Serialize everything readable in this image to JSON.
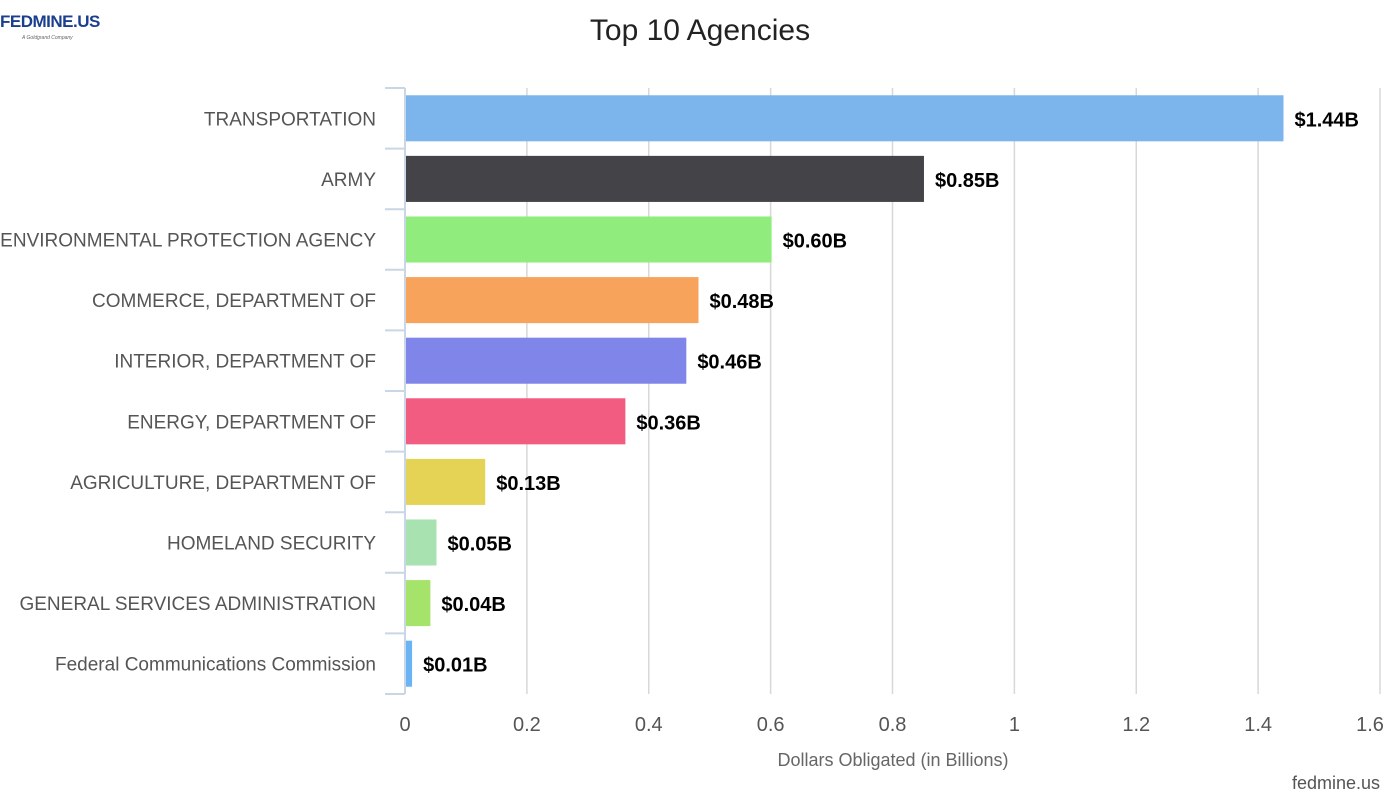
{
  "logo": {
    "brand": "FEDMINE.US",
    "tagline": "A Goldgrand Company"
  },
  "credit": "fedmine.us",
  "chart_data": {
    "type": "bar",
    "orientation": "horizontal",
    "title": "Top 10 Agencies",
    "xlabel": "Dollars Obligated (in Billions)",
    "ylabel": "",
    "xlim": [
      0,
      1.6
    ],
    "ticks": [
      "0",
      "0.2",
      "0.4",
      "0.6",
      "0.8",
      "1",
      "1.2",
      "1.4",
      "1.6"
    ],
    "grid": true,
    "categories": [
      "TRANSPORTATION",
      "ARMY",
      "ENVIRONMENTAL PROTECTION AGENCY",
      "COMMERCE, DEPARTMENT OF",
      "INTERIOR, DEPARTMENT OF",
      "ENERGY, DEPARTMENT OF",
      "AGRICULTURE, DEPARTMENT OF",
      "HOMELAND SECURITY",
      "GENERAL SERVICES ADMINISTRATION",
      "Federal Communications Commission"
    ],
    "values": [
      1.44,
      0.85,
      0.6,
      0.48,
      0.46,
      0.36,
      0.13,
      0.05,
      0.04,
      0.01
    ],
    "data_labels": [
      "$1.44B",
      "$0.85B",
      "$0.60B",
      "$0.48B",
      "$0.46B",
      "$0.36B",
      "$0.13B",
      "$0.05B",
      "$0.04B",
      "$0.01B"
    ],
    "colors": [
      "#7cb5ec",
      "#434348",
      "#90ed7d",
      "#f7a35c",
      "#8085e9",
      "#f15c80",
      "#e4d354",
      "#a8e2b0",
      "#a6e36a",
      "#6ab4f5"
    ]
  }
}
